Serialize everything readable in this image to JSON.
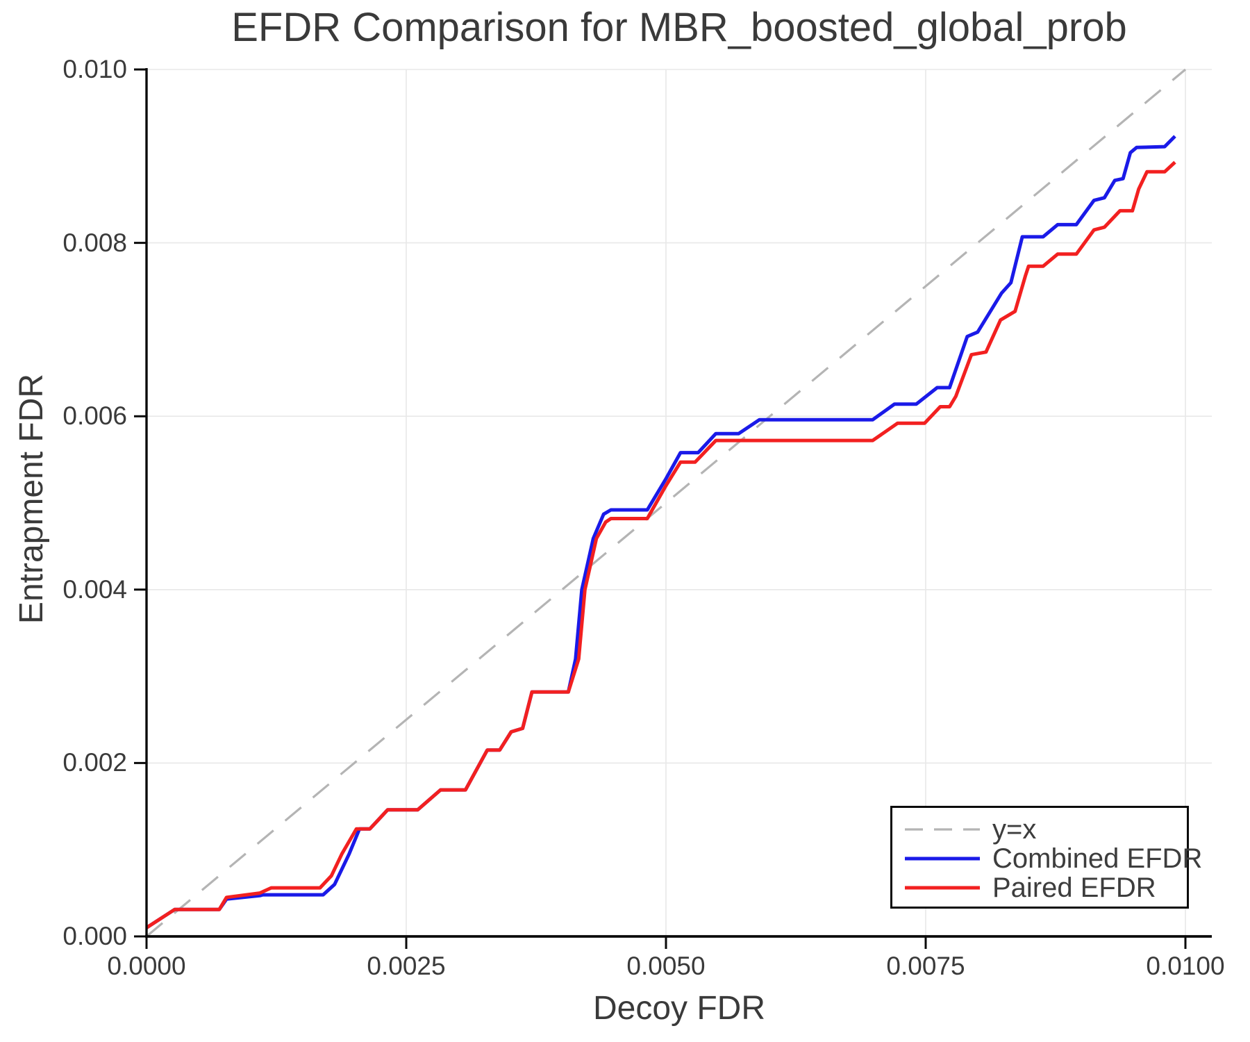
{
  "chart_data": {
    "type": "line",
    "title": "EFDR Comparison for MBR_boosted_global_prob",
    "xlabel": "Decoy FDR",
    "ylabel": "Entrapment FDR",
    "xlim": [
      0.0,
      0.01
    ],
    "ylim": [
      0.0,
      0.01
    ],
    "grid": true,
    "grid_color": "#e8e8e8",
    "legend_position": "lower right",
    "x_ticks": [
      {
        "value": 0.0,
        "label": "0.0000"
      },
      {
        "value": 0.0025,
        "label": "0.0025"
      },
      {
        "value": 0.005,
        "label": "0.0050"
      },
      {
        "value": 0.0075,
        "label": "0.0075"
      },
      {
        "value": 0.01,
        "label": "0.0100"
      }
    ],
    "y_ticks": [
      {
        "value": 0.0,
        "label": "0.000"
      },
      {
        "value": 0.002,
        "label": "0.002"
      },
      {
        "value": 0.004,
        "label": "0.004"
      },
      {
        "value": 0.006,
        "label": "0.006"
      },
      {
        "value": 0.008,
        "label": "0.008"
      },
      {
        "value": 0.01,
        "label": "0.010"
      }
    ],
    "reference_line": {
      "name": "y=x",
      "from": [
        0.0,
        0.0
      ],
      "to": [
        0.01,
        0.01
      ],
      "color": "#b4b4b4",
      "dash": [
        30,
        22
      ]
    },
    "series": [
      {
        "name": "Combined EFDR",
        "color": "#1a1ae8",
        "points": [
          [
            0.0,
            0.0001
          ],
          [
            0.00027,
            0.00031
          ],
          [
            0.0007,
            0.00031
          ],
          [
            0.00077,
            0.00043
          ],
          [
            0.00109,
            0.00047
          ],
          [
            0.00112,
            0.00048
          ],
          [
            0.0017,
            0.00048
          ],
          [
            0.00181,
            0.0006
          ],
          [
            0.00195,
            0.00095
          ],
          [
            0.00205,
            0.00124
          ],
          [
            0.00215,
            0.00124
          ],
          [
            0.00222,
            0.00133
          ],
          [
            0.00232,
            0.00146
          ],
          [
            0.00261,
            0.00146
          ],
          [
            0.00283,
            0.00169
          ],
          [
            0.00307,
            0.00169
          ],
          [
            0.00328,
            0.00215
          ],
          [
            0.0034,
            0.00215
          ],
          [
            0.00351,
            0.00236
          ],
          [
            0.00362,
            0.0024
          ],
          [
            0.00371,
            0.00282
          ],
          [
            0.00406,
            0.00282
          ],
          [
            0.00413,
            0.0032
          ],
          [
            0.00419,
            0.004
          ],
          [
            0.0043,
            0.00459
          ],
          [
            0.0044,
            0.00487
          ],
          [
            0.00447,
            0.00492
          ],
          [
            0.00482,
            0.00492
          ],
          [
            0.005,
            0.00528
          ],
          [
            0.00514,
            0.00558
          ],
          [
            0.00531,
            0.00558
          ],
          [
            0.00548,
            0.0058
          ],
          [
            0.0057,
            0.0058
          ],
          [
            0.0059,
            0.00596
          ],
          [
            0.00699,
            0.00596
          ],
          [
            0.0072,
            0.00614
          ],
          [
            0.00741,
            0.00614
          ],
          [
            0.00761,
            0.00633
          ],
          [
            0.00773,
            0.00633
          ],
          [
            0.0079,
            0.00692
          ],
          [
            0.008,
            0.00697
          ],
          [
            0.00823,
            0.00742
          ],
          [
            0.00832,
            0.00754
          ],
          [
            0.00843,
            0.00807
          ],
          [
            0.00863,
            0.00807
          ],
          [
            0.00877,
            0.00821
          ],
          [
            0.00895,
            0.00821
          ],
          [
            0.00912,
            0.00849
          ],
          [
            0.00922,
            0.00852
          ],
          [
            0.00932,
            0.00872
          ],
          [
            0.0094,
            0.00874
          ],
          [
            0.00947,
            0.00904
          ],
          [
            0.00953,
            0.0091
          ],
          [
            0.0098,
            0.00911
          ],
          [
            0.0099,
            0.00923
          ]
        ]
      },
      {
        "name": "Paired EFDR",
        "color": "#f22020",
        "points": [
          [
            0.0,
            0.0001
          ],
          [
            0.00027,
            0.00031
          ],
          [
            0.0007,
            0.00031
          ],
          [
            0.00077,
            0.00045
          ],
          [
            0.00109,
            0.0005
          ],
          [
            0.0012,
            0.00056
          ],
          [
            0.00167,
            0.00056
          ],
          [
            0.00178,
            0.0007
          ],
          [
            0.00188,
            0.00095
          ],
          [
            0.00202,
            0.00124
          ],
          [
            0.00215,
            0.00124
          ],
          [
            0.00222,
            0.00133
          ],
          [
            0.00232,
            0.00146
          ],
          [
            0.00261,
            0.00146
          ],
          [
            0.00283,
            0.00169
          ],
          [
            0.00307,
            0.00169
          ],
          [
            0.00328,
            0.00215
          ],
          [
            0.0034,
            0.00215
          ],
          [
            0.00351,
            0.00236
          ],
          [
            0.00362,
            0.0024
          ],
          [
            0.00371,
            0.00282
          ],
          [
            0.00406,
            0.00282
          ],
          [
            0.00416,
            0.0032
          ],
          [
            0.00422,
            0.004
          ],
          [
            0.00433,
            0.00459
          ],
          [
            0.00442,
            0.00478
          ],
          [
            0.00447,
            0.00482
          ],
          [
            0.00482,
            0.00482
          ],
          [
            0.005,
            0.0052
          ],
          [
            0.00514,
            0.00547
          ],
          [
            0.00528,
            0.00547
          ],
          [
            0.00548,
            0.00572
          ],
          [
            0.00699,
            0.00572
          ],
          [
            0.00723,
            0.00592
          ],
          [
            0.00749,
            0.00592
          ],
          [
            0.00764,
            0.00611
          ],
          [
            0.00773,
            0.00611
          ],
          [
            0.00779,
            0.00623
          ],
          [
            0.00794,
            0.00671
          ],
          [
            0.00808,
            0.00674
          ],
          [
            0.00822,
            0.00711
          ],
          [
            0.00836,
            0.00721
          ],
          [
            0.00846,
            0.00762
          ],
          [
            0.00849,
            0.00773
          ],
          [
            0.00863,
            0.00773
          ],
          [
            0.00877,
            0.00787
          ],
          [
            0.00895,
            0.00787
          ],
          [
            0.00912,
            0.00815
          ],
          [
            0.00922,
            0.00818
          ],
          [
            0.00937,
            0.00837
          ],
          [
            0.00949,
            0.00837
          ],
          [
            0.00955,
            0.00862
          ],
          [
            0.00963,
            0.00882
          ],
          [
            0.0098,
            0.00882
          ],
          [
            0.0099,
            0.00893
          ]
        ]
      }
    ],
    "legend": {
      "items": [
        {
          "label": "y=x",
          "color": "#b4b4b4",
          "dashed": true,
          "line_width": 3.2
        },
        {
          "label": "Combined EFDR",
          "color": "#1a1ae8",
          "dashed": false,
          "line_width": 5
        },
        {
          "label": "Paired EFDR",
          "color": "#f22020",
          "dashed": false,
          "line_width": 5
        }
      ]
    }
  }
}
